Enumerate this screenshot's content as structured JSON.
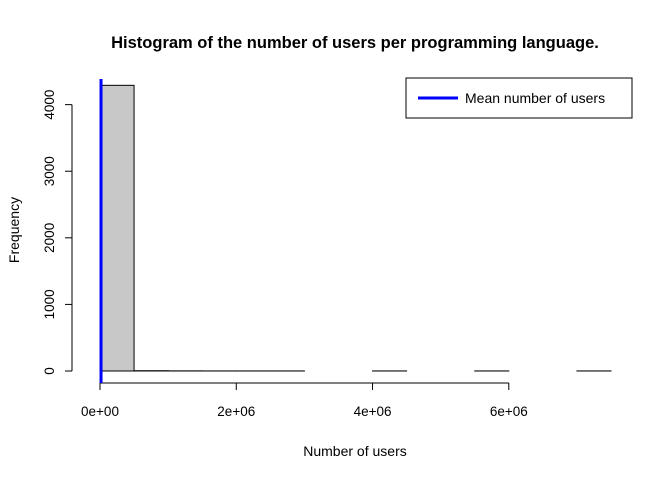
{
  "chart_data": {
    "type": "bar",
    "title": "Histogram of the number of users per programming language.",
    "xlabel": "Number of users",
    "ylabel": "Frequency",
    "xlim": [
      0,
      7500000
    ],
    "ylim": [
      0,
      4400
    ],
    "x_ticks": [
      {
        "value": 0,
        "label": "0e+00"
      },
      {
        "value": 2000000,
        "label": "2e+06"
      },
      {
        "value": 4000000,
        "label": "4e+06"
      },
      {
        "value": 6000000,
        "label": "6e+06"
      }
    ],
    "y_ticks": [
      {
        "value": 0,
        "label": "0"
      },
      {
        "value": 1000,
        "label": "1000"
      },
      {
        "value": 2000,
        "label": "2000"
      },
      {
        "value": 3000,
        "label": "3000"
      },
      {
        "value": 4000,
        "label": "4000"
      }
    ],
    "bins": [
      {
        "start": 0,
        "end": 500000,
        "count": 4290
      },
      {
        "start": 500000,
        "end": 1000000,
        "count": 4
      },
      {
        "start": 1000000,
        "end": 1500000,
        "count": 2
      },
      {
        "start": 1500000,
        "end": 2000000,
        "count": 1
      },
      {
        "start": 2000000,
        "end": 2500000,
        "count": 1
      },
      {
        "start": 2500000,
        "end": 3000000,
        "count": 1
      },
      {
        "start": 3000000,
        "end": 3500000,
        "count": 0
      },
      {
        "start": 3500000,
        "end": 4000000,
        "count": 0
      },
      {
        "start": 4000000,
        "end": 4500000,
        "count": 1
      },
      {
        "start": 4500000,
        "end": 5000000,
        "count": 0
      },
      {
        "start": 5000000,
        "end": 5500000,
        "count": 0
      },
      {
        "start": 5500000,
        "end": 6000000,
        "count": 1
      },
      {
        "start": 6000000,
        "end": 6500000,
        "count": 0
      },
      {
        "start": 6500000,
        "end": 7000000,
        "count": 0
      },
      {
        "start": 7000000,
        "end": 7500000,
        "count": 1
      }
    ],
    "mean_line": {
      "value": 15000,
      "color": "#0000ff",
      "label": "Mean number of users"
    },
    "bar_fill": "#c8c8c8",
    "bar_stroke": "#000000",
    "legend": {
      "position": "top-right",
      "entries": [
        "Mean number of users"
      ]
    },
    "grid": false
  }
}
